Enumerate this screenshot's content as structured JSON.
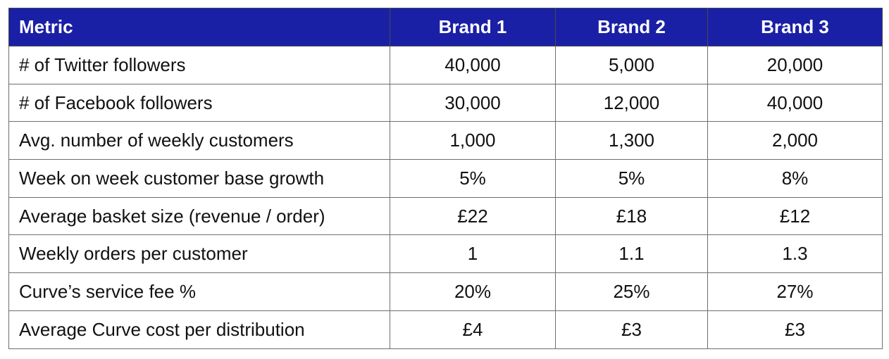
{
  "table": {
    "headers": [
      "Metric",
      "Brand 1",
      "Brand 2",
      "Brand 3"
    ],
    "rows": [
      [
        "# of Twitter followers",
        "40,000",
        "5,000",
        "20,000"
      ],
      [
        "# of Facebook followers",
        "30,000",
        "12,000",
        "40,000"
      ],
      [
        "Avg. number of weekly customers",
        "1,000",
        "1,300",
        "2,000"
      ],
      [
        "Week on week customer base growth",
        "5%",
        "5%",
        "8%"
      ],
      [
        "Average basket size (revenue / order)",
        "£22",
        "£18",
        "£12"
      ],
      [
        "Weekly orders per customer",
        "1",
        "1.1",
        "1.3"
      ],
      [
        "Curve’s service fee %",
        "20%",
        "25%",
        "27%"
      ],
      [
        "Average Curve cost per distribution",
        "£4",
        "£3",
        "£3"
      ]
    ]
  },
  "colors": {
    "header_background": "#1a20a6",
    "header_text": "#ffffff",
    "border": "#6e6e6e"
  }
}
